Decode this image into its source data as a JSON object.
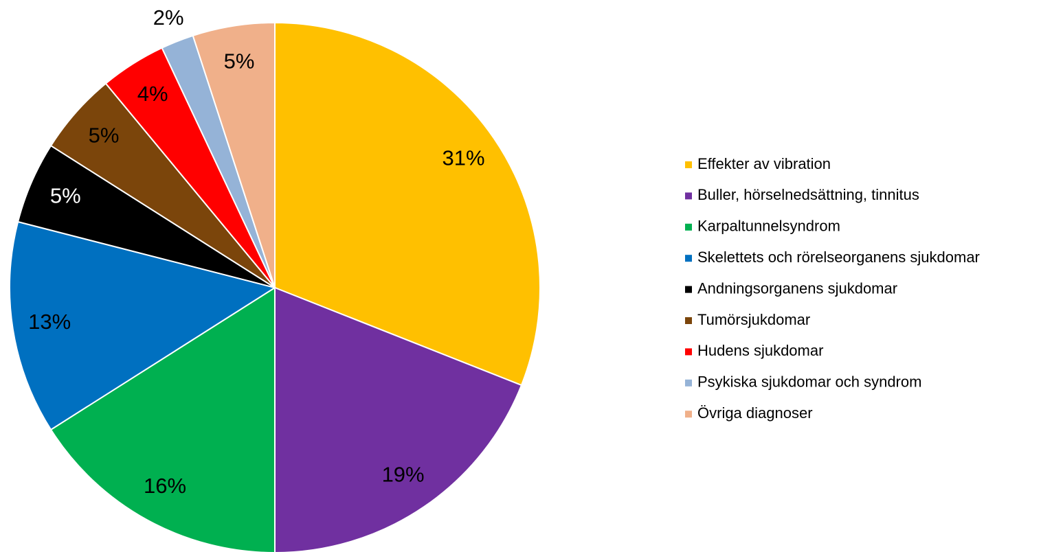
{
  "chart_data": {
    "type": "pie",
    "categories": [
      "Effekter av vibration",
      "Buller, hörselnedsättning, tinnitus",
      "Karpaltunnelsyndrom",
      "Skelettets och rörelseorganens sjukdomar",
      "Andningsorganens sjukdomar",
      "Tumörsjukdomar",
      "Hudens sjukdomar",
      "Psykiska sjukdomar och syndrom",
      "Övriga diagnoser"
    ],
    "values": [
      31,
      19,
      16,
      13,
      5,
      5,
      4,
      2,
      5
    ],
    "value_labels": [
      "31%",
      "19%",
      "16%",
      "13%",
      "5%",
      "5%",
      "4%",
      "2%",
      "5%"
    ],
    "colors": [
      "#FFC000",
      "#7030A0",
      "#00B050",
      "#0070C0",
      "#000000",
      "#7B450B",
      "#FF0000",
      "#95B3D7",
      "#F0B08A"
    ],
    "legend": "right"
  }
}
